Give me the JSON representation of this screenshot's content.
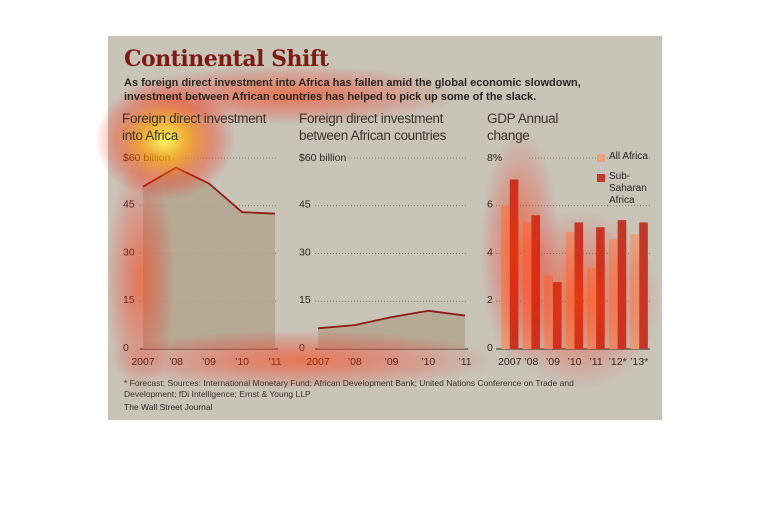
{
  "title": "Continental Shift",
  "subtitle": "As foreign direct investment into Africa has fallen amid the global economic slowdown, investment between African countries has helped to pick up some of the slack.",
  "chart_data": [
    {
      "type": "area",
      "title": "Foreign direct investment into Africa",
      "categories": [
        "2007",
        "’08",
        "’09",
        "’10",
        "’11"
      ],
      "values": [
        51,
        57,
        52,
        43,
        42.5
      ],
      "color": "#b3a68f",
      "line_color": "#8e1c17",
      "ylim": [
        0,
        60
      ],
      "yticks": [
        0,
        15,
        30,
        45,
        {
          "value": 60,
          "label": "$60 billion"
        }
      ],
      "grid": true
    },
    {
      "type": "area",
      "title": "Foreign direct investment between African countries",
      "categories": [
        "2007",
        "’08",
        "’09",
        "’10",
        "’11"
      ],
      "values": [
        6.5,
        7.5,
        10,
        12,
        10.5
      ],
      "color": "#b3a68f",
      "line_color": "#8e1c17",
      "ylim": [
        0,
        60
      ],
      "yticks": [
        0,
        15,
        30,
        45,
        {
          "value": 60,
          "label": "$60 billion"
        }
      ],
      "grid": true
    },
    {
      "type": "bar",
      "title": "GDP Annual change",
      "categories": [
        "2007",
        "’08",
        "’09",
        "’10",
        "’11",
        "’12*",
        "’13*"
      ],
      "series": [
        {
          "name": "All Africa",
          "color": "#e7a47c",
          "values": [
            6.0,
            5.3,
            3.1,
            4.9,
            3.4,
            4.6,
            4.8
          ]
        },
        {
          "name": "Sub-Saharan Africa",
          "color": "#bf3a28",
          "values": [
            7.1,
            5.6,
            2.8,
            5.3,
            5.1,
            5.4,
            5.3
          ]
        }
      ],
      "ylim": [
        0,
        8
      ],
      "yticks": [
        0,
        2,
        4,
        6,
        {
          "value": 8,
          "label": "8%"
        }
      ],
      "grid": true
    }
  ],
  "footnote": "* Forecast; Sources: International Monetary Fund; African Development Bank; United Nations Conference on Trade and Development; fDi Intelligence; Ernst & Young LLP",
  "credit": "The Wall Street Journal"
}
